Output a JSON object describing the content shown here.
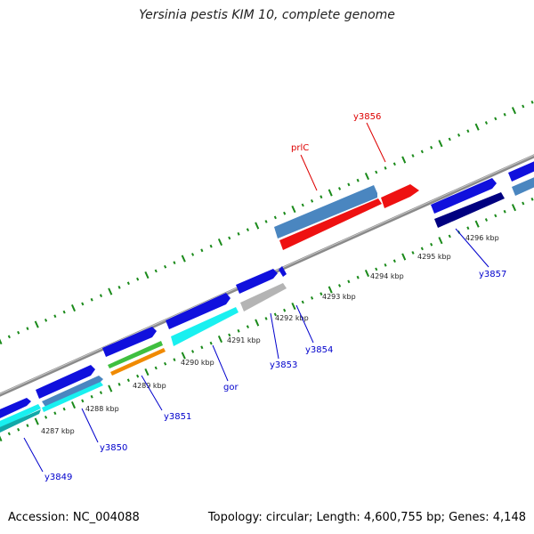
{
  "title": "Yersinia pestis KIM 10, complete genome",
  "footer": {
    "accession": "Accession: NC_004088",
    "summary": "Topology: circular; Length: 4,600,755 bp; Genes: 4,148"
  },
  "scale_labels": [
    "4287 kbp",
    "4288 kbp",
    "4289 kbp",
    "4290 kbp",
    "4291 kbp",
    "4292 kbp",
    "4293 kbp",
    "4294 kbp",
    "4295 kbp",
    "4296 kbp"
  ],
  "gene_labels": [
    {
      "text": "y3849",
      "color": "#0000cc"
    },
    {
      "text": "y3850",
      "color": "#0000cc"
    },
    {
      "text": "y3851",
      "color": "#0000cc"
    },
    {
      "text": "gor",
      "color": "#0000cc"
    },
    {
      "text": "y3853",
      "color": "#0000cc"
    },
    {
      "text": "y3854",
      "color": "#0000cc"
    },
    {
      "text": "y3857",
      "color": "#0000cc"
    },
    {
      "text": "prlC",
      "color": "#dd0000"
    },
    {
      "text": "y3856",
      "color": "#dd0000"
    }
  ],
  "colors": {
    "backbone": "#8a8a8a",
    "tick": "#1a8a1a",
    "blue": "#1010dd",
    "cyan": "#19f0f0",
    "steelblue": "#4a86c0",
    "red": "#ee1111",
    "navy": "#000080",
    "green": "#3fbf3f",
    "orange": "#f08a00",
    "gray": "#b4b4b4"
  }
}
